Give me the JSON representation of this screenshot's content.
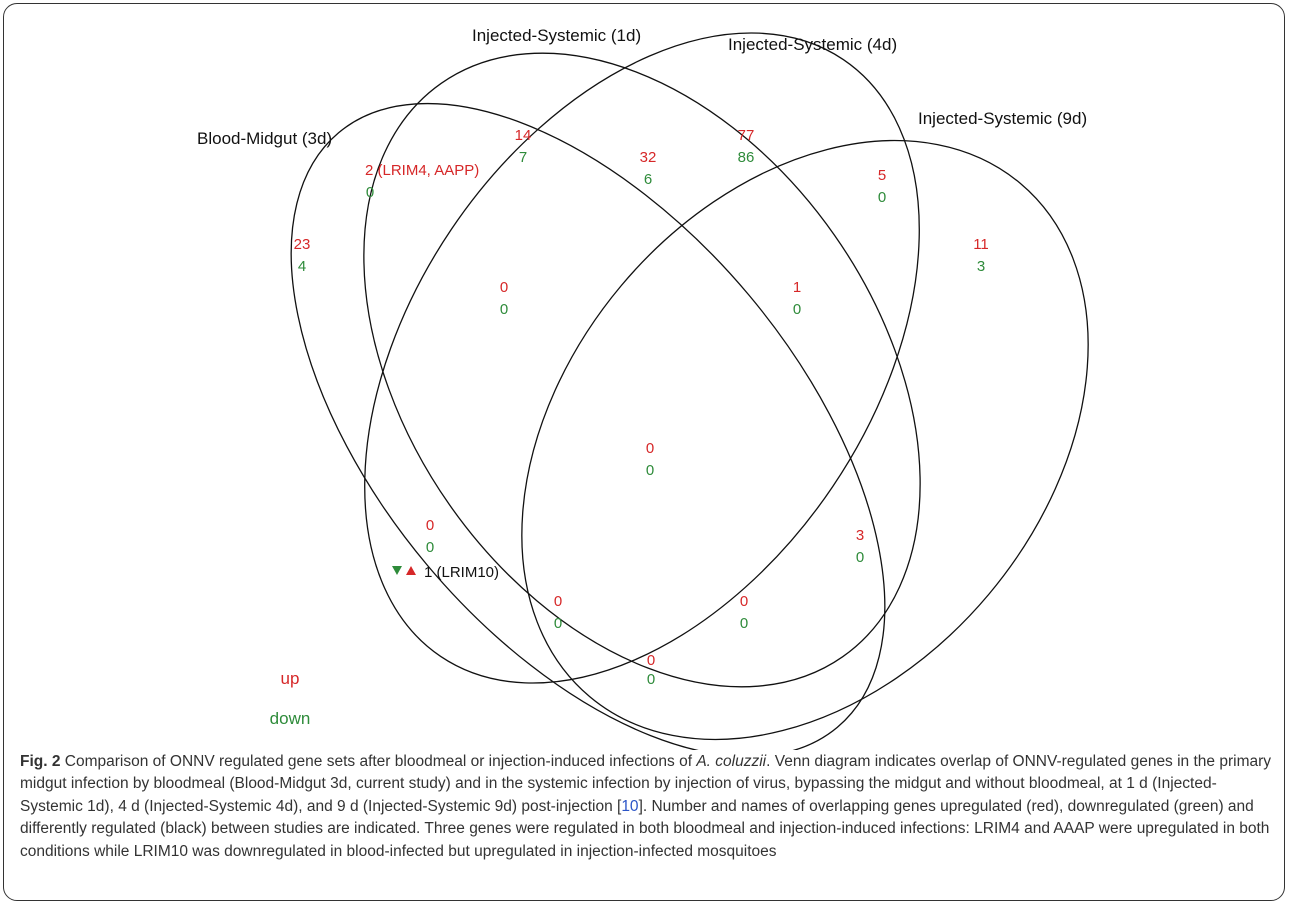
{
  "sets": [
    {
      "id": "bm3",
      "label": "Blood-Midgut (3d)"
    },
    {
      "id": "is1",
      "label": "Injected-Systemic (1d)"
    },
    {
      "id": "is4",
      "label": "Injected-Systemic (4d)"
    },
    {
      "id": "is9",
      "label": "Injected-Systemic (9d)"
    }
  ],
  "regions": [
    {
      "id": "bm3-only",
      "up": "23",
      "down": "4"
    },
    {
      "id": "is1-only",
      "up": "14",
      "down": "7"
    },
    {
      "id": "is4-only",
      "up": "77",
      "down": "86"
    },
    {
      "id": "is9-only",
      "up": "11",
      "down": "3"
    },
    {
      "id": "bm3-is1",
      "up": "2 (LRIM4, AAPP)",
      "down": "0"
    },
    {
      "id": "is1-is4",
      "up": "32",
      "down": "6"
    },
    {
      "id": "is4-is9",
      "up": "5",
      "down": "0"
    },
    {
      "id": "bm3-is1-is4",
      "up": "0",
      "down": "0"
    },
    {
      "id": "is1-is4-is9",
      "up": "1",
      "down": "0"
    },
    {
      "id": "all-four",
      "up": "0",
      "down": "0"
    },
    {
      "id": "bm3-is4",
      "up": "0",
      "down": "0"
    },
    {
      "id": "is1-is9",
      "up": "3",
      "down": "0"
    },
    {
      "id": "bm3-is4-is9",
      "up": "0",
      "down": "0"
    },
    {
      "id": "bm3-is1-is9",
      "up": "0",
      "down": "0"
    },
    {
      "id": "bm3-is9",
      "up": "0",
      "down": "0"
    }
  ],
  "mixed_region": {
    "id": "bm3-is4",
    "text": "1 (LRIM10)",
    "down_marker_color": "#2e8b3a",
    "up_marker_color": "#d62728"
  },
  "legend": {
    "up": "up",
    "down": "down"
  },
  "colors": {
    "up": "#d62728",
    "down": "#2e8b3a",
    "mixed": "#111111"
  },
  "caption": {
    "fig": "Fig. 2",
    "part1": " Comparison of ONNV regulated gene sets after bloodmeal or injection-induced infections of ",
    "species": "A. coluzzii",
    "part2": ". Venn diagram indicates overlap of ONNV-regulated genes in the primary midgut infection by bloodmeal (Blood-Midgut 3d, current study) and in the systemic infection by injection of virus, bypassing the midgut and without bloodmeal, at 1 d (Injected-Systemic 1d), 4 d (Injected-Systemic 4d), and 9 d (Injected-Systemic 9d) post-injection [",
    "ref": "10",
    "part3": "]. Number and names of overlapping genes upregulated (red), downregulated (green) and differently regulated (black) between studies are indicated. Three genes were regulated in both bloodmeal and injection-induced infections: LRIM4 and AAAP were upregulated in both conditions while LRIM10 was downregulated in blood-infected but upregulated in injection-infected mosquitoes"
  }
}
